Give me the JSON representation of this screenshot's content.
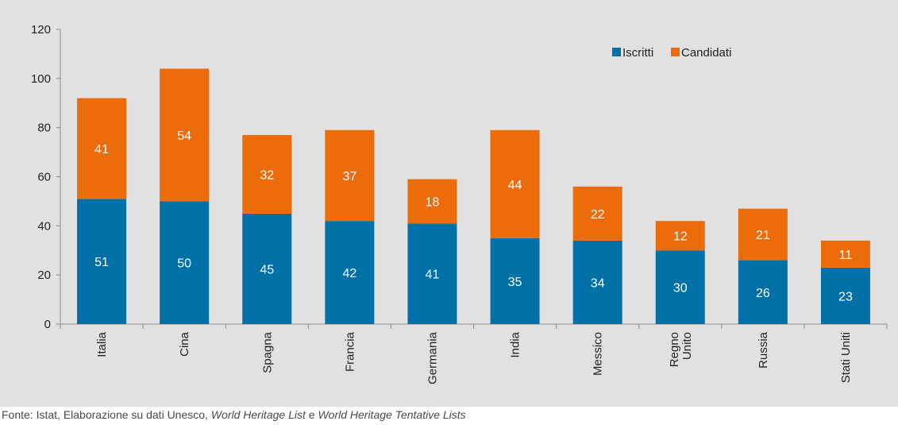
{
  "chart_data": {
    "type": "bar",
    "stacked": true,
    "categories": [
      "Italia",
      "Cina",
      "Spagna",
      "Francia",
      "Germania",
      "India",
      "Messico",
      "Regno Unito",
      "Russia",
      "Stati Uniti"
    ],
    "category_lines": [
      [
        "Italia"
      ],
      [
        "Cina"
      ],
      [
        "Spagna"
      ],
      [
        "Francia"
      ],
      [
        "Germania"
      ],
      [
        "India"
      ],
      [
        "Messico"
      ],
      [
        "Regno",
        "Unito"
      ],
      [
        "Russia"
      ],
      [
        "Stati Uniti"
      ]
    ],
    "series": [
      {
        "name": "Iscritti",
        "color": "#0071a7",
        "values": [
          51,
          50,
          45,
          42,
          41,
          35,
          34,
          30,
          26,
          23
        ]
      },
      {
        "name": "Candidati",
        "color": "#ec6c0b",
        "values": [
          41,
          54,
          32,
          37,
          18,
          44,
          22,
          12,
          21,
          11
        ]
      }
    ],
    "ylim": [
      0,
      120
    ],
    "yticks": [
      0,
      20,
      40,
      60,
      80,
      100,
      120
    ],
    "grid": false,
    "legend": "top-right",
    "title": "",
    "xlabel": "",
    "ylabel": ""
  },
  "source": {
    "prefix": "Fonte: Istat, Elaborazione su dati Unesco, ",
    "list1": "World Heritage List",
    "joiner": " e ",
    "list2": "World Heritage Tentative Lists"
  }
}
